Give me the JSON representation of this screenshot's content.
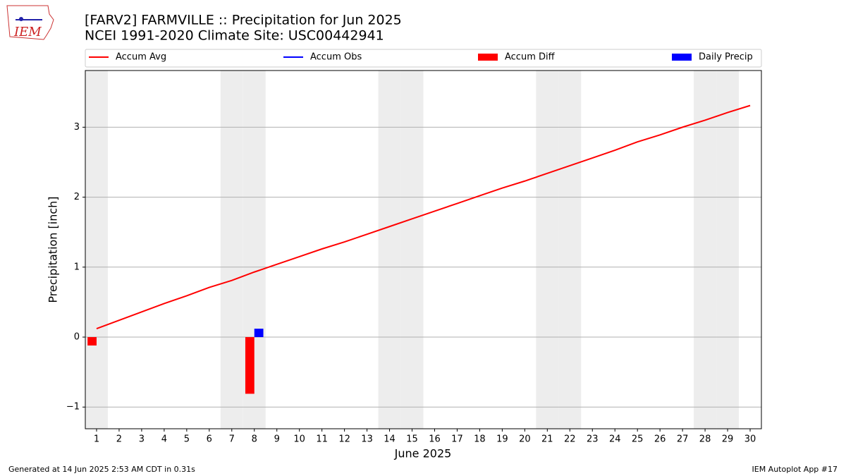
{
  "logo_text": "IEM",
  "chart_data": {
    "type": "line",
    "title": "[FARV2] FARMVILLE :: Precipitation for Jun 2025",
    "subtitle": "NCEI 1991-2020 Climate Site: USC00442941",
    "xlabel": "June 2025",
    "ylabel": "Precipitation [inch]",
    "x": [
      1,
      2,
      3,
      4,
      5,
      6,
      7,
      8,
      9,
      10,
      11,
      12,
      13,
      14,
      15,
      16,
      17,
      18,
      19,
      20,
      21,
      22,
      23,
      24,
      25,
      26,
      27,
      28,
      29,
      30
    ],
    "xlim": [
      0.5,
      30.5
    ],
    "xticks": [
      1,
      2,
      3,
      4,
      5,
      6,
      7,
      8,
      9,
      10,
      11,
      12,
      13,
      14,
      15,
      16,
      17,
      18,
      19,
      20,
      21,
      22,
      23,
      24,
      25,
      26,
      27,
      28,
      29,
      30
    ],
    "ylim": [
      -1.31,
      3.81
    ],
    "yticks": [
      {
        "value": -1,
        "label": "−1"
      },
      0,
      1,
      2,
      3
    ],
    "grid": true,
    "weekend_days": [
      1,
      7,
      8,
      14,
      15,
      21,
      22,
      28,
      29
    ],
    "series": [
      {
        "name": "Accum Avg",
        "kind": "line",
        "color": "#ff0000",
        "values": [
          0.12,
          0.24,
          0.36,
          0.48,
          0.59,
          0.71,
          0.81,
          0.93,
          1.04,
          1.15,
          1.26,
          1.36,
          1.47,
          1.58,
          1.69,
          1.8,
          1.91,
          2.02,
          2.13,
          2.23,
          2.34,
          2.45,
          2.56,
          2.67,
          2.79,
          2.89,
          3.0,
          3.1,
          3.21,
          3.31
        ]
      },
      {
        "name": "Accum Obs",
        "kind": "line",
        "color": "#0000ff",
        "values": [
          null,
          null,
          null,
          null,
          null,
          null,
          null,
          null,
          null,
          null,
          null,
          null,
          null,
          null,
          null,
          null,
          null,
          null,
          null,
          null,
          null,
          null,
          null,
          null,
          null,
          null,
          null,
          null,
          null,
          null
        ]
      },
      {
        "name": "Accum Diff",
        "kind": "bar",
        "offset": "left",
        "color": "#ff0000",
        "values": [
          -0.12,
          null,
          null,
          null,
          null,
          null,
          null,
          -0.81,
          null,
          null,
          null,
          null,
          null,
          null,
          null,
          null,
          null,
          null,
          null,
          null,
          null,
          null,
          null,
          null,
          null,
          null,
          null,
          null,
          null,
          null
        ]
      },
      {
        "name": "Daily Precip",
        "kind": "bar",
        "offset": "right",
        "color": "#0000ff",
        "values": [
          null,
          null,
          null,
          null,
          null,
          null,
          null,
          0.12,
          null,
          null,
          null,
          null,
          null,
          null,
          null,
          null,
          null,
          null,
          null,
          null,
          null,
          null,
          null,
          null,
          null,
          null,
          null,
          null,
          null,
          null
        ]
      }
    ]
  },
  "footer": {
    "left": "Generated at 14 Jun 2025 2:53 AM CDT in 0.31s",
    "right": "IEM Autoplot App #17"
  }
}
